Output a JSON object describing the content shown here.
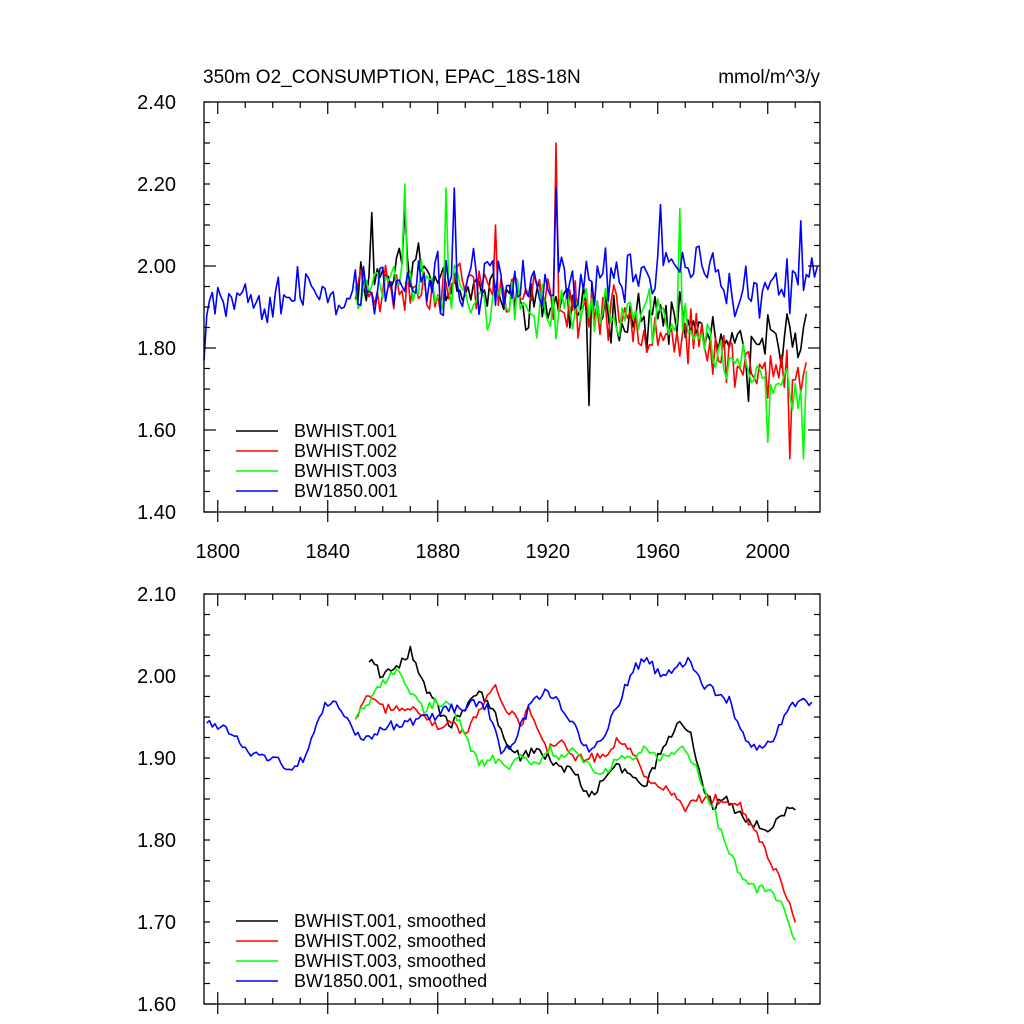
{
  "title": "350m O2_CONSUMPTION, EPAC_18S-18N",
  "units": "mmol/m^3/y",
  "chart_data": [
    {
      "type": "line",
      "panel": "top",
      "xlabel": "",
      "ylabel": "",
      "xlim": [
        1795,
        2019
      ],
      "ylim": [
        1.4,
        2.4
      ],
      "xticks": [
        1800,
        1840,
        1880,
        1920,
        1960,
        2000
      ],
      "yticks": [
        1.4,
        1.6,
        1.8,
        2.0,
        2.2,
        2.4
      ],
      "ytick_labels": [
        "1.40",
        "1.60",
        "1.80",
        "2.00",
        "2.20",
        "2.40"
      ],
      "xtick_labels": [
        "1800",
        "1840",
        "1880",
        "1920",
        "1960",
        "2000"
      ],
      "legend_position": "bottom-left",
      "series": [
        {
          "name": "BWHIST.001",
          "color": "#000000",
          "start": 1850,
          "end": 2014,
          "level": [
            [
              1850,
              1.96
            ],
            [
              1870,
              2.01
            ],
            [
              1890,
              1.95
            ],
            [
              1910,
              1.92
            ],
            [
              1930,
              1.9
            ],
            [
              1950,
              1.88
            ],
            [
              1970,
              1.86
            ],
            [
              1990,
              1.79
            ],
            [
              2014,
              1.84
            ]
          ],
          "amp": 0.08,
          "seed": 11,
          "spikes": [
            [
              1856,
              2.13
            ],
            [
              1868,
              2.14
            ],
            [
              1935,
              1.66
            ],
            [
              1993,
              1.67
            ]
          ]
        },
        {
          "name": "BWHIST.002",
          "color": "#ff0000",
          "start": 1850,
          "end": 2014,
          "level": [
            [
              1850,
              1.95
            ],
            [
              1870,
              1.94
            ],
            [
              1890,
              1.96
            ],
            [
              1910,
              1.93
            ],
            [
              1930,
              1.9
            ],
            [
              1950,
              1.87
            ],
            [
              1970,
              1.83
            ],
            [
              1990,
              1.76
            ],
            [
              2014,
              1.72
            ]
          ],
          "amp": 0.08,
          "seed": 23,
          "spikes": [
            [
              1923,
              2.3
            ],
            [
              1901,
              2.1
            ],
            [
              2008,
              1.53
            ]
          ]
        },
        {
          "name": "BWHIST.003",
          "color": "#00ff00",
          "start": 1850,
          "end": 2014,
          "level": [
            [
              1850,
              1.96
            ],
            [
              1870,
              1.97
            ],
            [
              1890,
              1.93
            ],
            [
              1910,
              1.89
            ],
            [
              1930,
              1.9
            ],
            [
              1950,
              1.88
            ],
            [
              1970,
              1.86
            ],
            [
              1990,
              1.75
            ],
            [
              2014,
              1.68
            ]
          ],
          "amp": 0.08,
          "seed": 37,
          "spikes": [
            [
              1868,
              2.2
            ],
            [
              1883,
              2.19
            ],
            [
              1968,
              2.14
            ],
            [
              2013,
              1.53
            ],
            [
              2000,
              1.57
            ]
          ]
        },
        {
          "name": "BW1850.001",
          "color": "#0000ff",
          "start": 1795,
          "end": 2018,
          "level": [
            [
              1795,
              1.94
            ],
            [
              1830,
              1.93
            ],
            [
              1860,
              1.94
            ],
            [
              1890,
              1.96
            ],
            [
              1920,
              1.95
            ],
            [
              1950,
              1.98
            ],
            [
              1970,
              2.02
            ],
            [
              1990,
              1.92
            ],
            [
              2018,
              1.96
            ]
          ],
          "amp": 0.09,
          "seed": 53,
          "spikes": [
            [
              1795,
              1.77
            ],
            [
              1923,
              2.19
            ],
            [
              1886,
              2.19
            ],
            [
              1961,
              2.15
            ],
            [
              2012,
              2.11
            ]
          ]
        }
      ],
      "legend": [
        "BWHIST.001",
        "BWHIST.002",
        "BWHIST.003",
        "BW1850.001"
      ]
    },
    {
      "type": "line",
      "panel": "bottom",
      "xlim": [
        1795,
        2019
      ],
      "ylim": [
        1.6,
        2.1
      ],
      "xticks": [
        1800,
        1840,
        1880,
        1920,
        1960,
        2000
      ],
      "yticks": [
        1.6,
        1.7,
        1.8,
        1.9,
        2.0,
        2.1
      ],
      "ytick_labels": [
        "1.60",
        "1.70",
        "1.80",
        "1.90",
        "2.00",
        "2.10"
      ],
      "legend_position": "bottom-left",
      "series": [
        {
          "name": "BWHIST.001, smoothed",
          "color": "#000000",
          "points": [
            [
              1855,
              2.02
            ],
            [
              1860,
              2.0
            ],
            [
              1865,
              2.01
            ],
            [
              1870,
              2.03
            ],
            [
              1875,
              1.99
            ],
            [
              1880,
              1.96
            ],
            [
              1885,
              1.94
            ],
            [
              1890,
              1.96
            ],
            [
              1895,
              1.98
            ],
            [
              1900,
              1.96
            ],
            [
              1905,
              1.92
            ],
            [
              1910,
              1.9
            ],
            [
              1915,
              1.91
            ],
            [
              1920,
              1.9
            ],
            [
              1925,
              1.89
            ],
            [
              1930,
              1.88
            ],
            [
              1935,
              1.85
            ],
            [
              1940,
              1.87
            ],
            [
              1945,
              1.89
            ],
            [
              1950,
              1.88
            ],
            [
              1955,
              1.86
            ],
            [
              1960,
              1.9
            ],
            [
              1965,
              1.93
            ],
            [
              1968,
              1.95
            ],
            [
              1972,
              1.93
            ],
            [
              1976,
              1.87
            ],
            [
              1980,
              1.84
            ],
            [
              1985,
              1.85
            ],
            [
              1990,
              1.83
            ],
            [
              1995,
              1.82
            ],
            [
              2000,
              1.81
            ],
            [
              2005,
              1.83
            ],
            [
              2010,
              1.84
            ]
          ]
        },
        {
          "name": "BWHIST.002, smoothed",
          "color": "#ff0000",
          "points": [
            [
              1850,
              1.95
            ],
            [
              1855,
              1.98
            ],
            [
              1860,
              1.96
            ],
            [
              1865,
              1.96
            ],
            [
              1870,
              1.96
            ],
            [
              1875,
              1.95
            ],
            [
              1880,
              1.94
            ],
            [
              1885,
              1.94
            ],
            [
              1890,
              1.93
            ],
            [
              1895,
              1.96
            ],
            [
              1900,
              1.99
            ],
            [
              1905,
              1.96
            ],
            [
              1910,
              1.94
            ],
            [
              1913,
              1.96
            ],
            [
              1917,
              1.93
            ],
            [
              1920,
              1.91
            ],
            [
              1925,
              1.92
            ],
            [
              1930,
              1.9
            ],
            [
              1935,
              1.9
            ],
            [
              1940,
              1.9
            ],
            [
              1945,
              1.92
            ],
            [
              1950,
              1.91
            ],
            [
              1955,
              1.88
            ],
            [
              1960,
              1.87
            ],
            [
              1965,
              1.86
            ],
            [
              1970,
              1.84
            ],
            [
              1975,
              1.85
            ],
            [
              1980,
              1.85
            ],
            [
              1985,
              1.85
            ],
            [
              1990,
              1.84
            ],
            [
              1995,
              1.81
            ],
            [
              2000,
              1.78
            ],
            [
              2005,
              1.75
            ],
            [
              2008,
              1.72
            ],
            [
              2010,
              1.7
            ]
          ]
        },
        {
          "name": "BWHIST.003, smoothed",
          "color": "#00ff00",
          "points": [
            [
              1850,
              1.95
            ],
            [
              1855,
              1.97
            ],
            [
              1860,
              1.99
            ],
            [
              1865,
              2.01
            ],
            [
              1870,
              1.98
            ],
            [
              1875,
              1.96
            ],
            [
              1880,
              1.97
            ],
            [
              1885,
              1.96
            ],
            [
              1890,
              1.93
            ],
            [
              1895,
              1.89
            ],
            [
              1900,
              1.9
            ],
            [
              1905,
              1.89
            ],
            [
              1910,
              1.9
            ],
            [
              1915,
              1.89
            ],
            [
              1920,
              1.91
            ],
            [
              1925,
              1.9
            ],
            [
              1930,
              1.91
            ],
            [
              1935,
              1.89
            ],
            [
              1940,
              1.88
            ],
            [
              1945,
              1.9
            ],
            [
              1950,
              1.9
            ],
            [
              1955,
              1.91
            ],
            [
              1960,
              1.9
            ],
            [
              1965,
              1.91
            ],
            [
              1970,
              1.91
            ],
            [
              1975,
              1.88
            ],
            [
              1980,
              1.84
            ],
            [
              1985,
              1.79
            ],
            [
              1990,
              1.76
            ],
            [
              1995,
              1.74
            ],
            [
              2000,
              1.74
            ],
            [
              2005,
              1.72
            ],
            [
              2010,
              1.68
            ]
          ]
        },
        {
          "name": "BW1850.001, smoothed",
          "color": "#0000ff",
          "points": [
            [
              1796,
              1.94
            ],
            [
              1800,
              1.94
            ],
            [
              1805,
              1.93
            ],
            [
              1810,
              1.91
            ],
            [
              1815,
              1.9
            ],
            [
              1820,
              1.9
            ],
            [
              1825,
              1.89
            ],
            [
              1829,
              1.89
            ],
            [
              1833,
              1.91
            ],
            [
              1838,
              1.96
            ],
            [
              1843,
              1.97
            ],
            [
              1848,
              1.94
            ],
            [
              1853,
              1.92
            ],
            [
              1858,
              1.93
            ],
            [
              1863,
              1.94
            ],
            [
              1868,
              1.94
            ],
            [
              1873,
              1.95
            ],
            [
              1878,
              1.95
            ],
            [
              1883,
              1.96
            ],
            [
              1888,
              1.96
            ],
            [
              1893,
              1.97
            ],
            [
              1898,
              1.96
            ],
            [
              1903,
              1.91
            ],
            [
              1908,
              1.92
            ],
            [
              1913,
              1.96
            ],
            [
              1918,
              1.98
            ],
            [
              1923,
              1.97
            ],
            [
              1928,
              1.95
            ],
            [
              1932,
              1.92
            ],
            [
              1936,
              1.91
            ],
            [
              1941,
              1.93
            ],
            [
              1946,
              1.97
            ],
            [
              1951,
              2.01
            ],
            [
              1956,
              2.02
            ],
            [
              1961,
              2.0
            ],
            [
              1966,
              2.01
            ],
            [
              1971,
              2.02
            ],
            [
              1976,
              1.99
            ],
            [
              1981,
              1.98
            ],
            [
              1986,
              1.97
            ],
            [
              1991,
              1.93
            ],
            [
              1996,
              1.91
            ],
            [
              2001,
              1.92
            ],
            [
              2006,
              1.95
            ],
            [
              2011,
              1.97
            ],
            [
              2016,
              1.97
            ]
          ]
        }
      ],
      "legend": [
        "BWHIST.001, smoothed",
        "BWHIST.002, smoothed",
        "BWHIST.003, smoothed",
        "BW1850.001, smoothed"
      ]
    }
  ]
}
